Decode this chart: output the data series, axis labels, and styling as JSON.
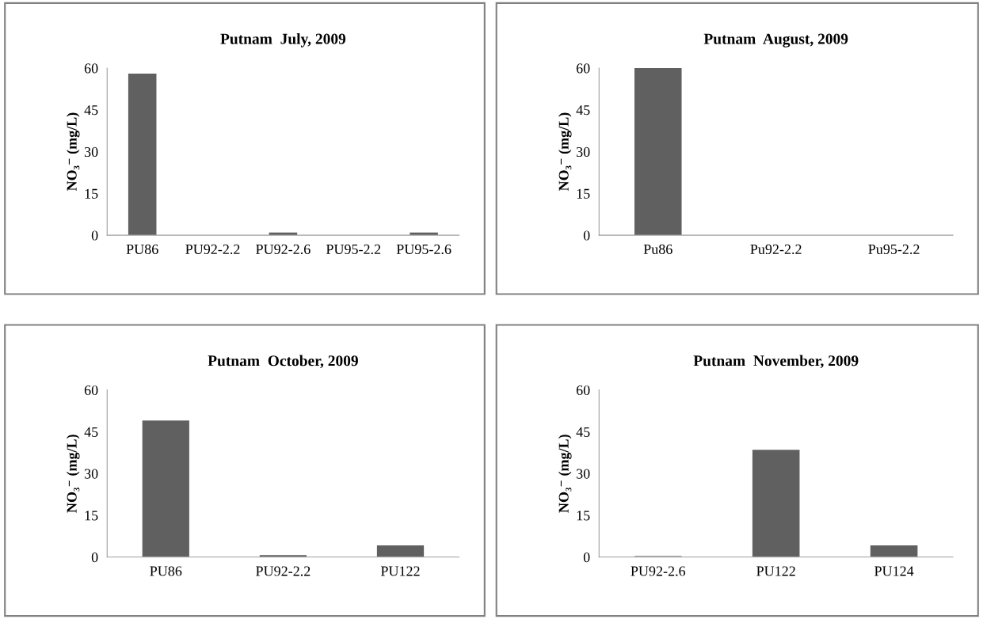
{
  "chart_data": [
    {
      "type": "bar",
      "title": "Putnam  July, 2009",
      "ylabel": "NO₃⁻ (mg/L)",
      "categories": [
        "PU86",
        "PU92-2.2",
        "PU92-2.6",
        "PU95-2.2",
        "PU95-2.6"
      ],
      "values": [
        58,
        0,
        1,
        0,
        1
      ],
      "color": "#606060",
      "ylim": [
        0,
        60
      ],
      "yticks": [
        0,
        15,
        30,
        45,
        60
      ],
      "grid": false,
      "legend": false
    },
    {
      "type": "bar",
      "title": "Putnam  August, 2009",
      "ylabel": "NO₃⁻ (mg/L)",
      "categories": [
        "Pu86",
        "Pu92-2.2",
        "Pu95-2.2"
      ],
      "values": [
        60,
        0,
        0
      ],
      "color": "#606060",
      "ylim": [
        0,
        60
      ],
      "yticks": [
        0,
        15,
        30,
        45,
        60
      ],
      "grid": false,
      "legend": false
    },
    {
      "type": "bar",
      "title": "Putnam  October, 2009",
      "ylabel": "NO₃⁻ (mg/L)",
      "categories": [
        "PU86",
        "PU92-2.2",
        "PU122"
      ],
      "values": [
        49,
        0.7,
        4.2
      ],
      "color": "#606060",
      "ylim": [
        0,
        60
      ],
      "yticks": [
        0,
        15,
        30,
        45,
        60
      ],
      "grid": false,
      "legend": false
    },
    {
      "type": "bar",
      "title": "Putnam  November, 2009",
      "ylabel": "NO₃⁻ (mg/L)",
      "categories": [
        "PU92-2.6",
        "PU122",
        "PU124"
      ],
      "values": [
        0.4,
        38.5,
        4.2
      ],
      "color": "#606060",
      "ylim": [
        0,
        60
      ],
      "yticks": [
        0,
        15,
        30,
        45,
        60
      ],
      "grid": false,
      "legend": false
    }
  ]
}
